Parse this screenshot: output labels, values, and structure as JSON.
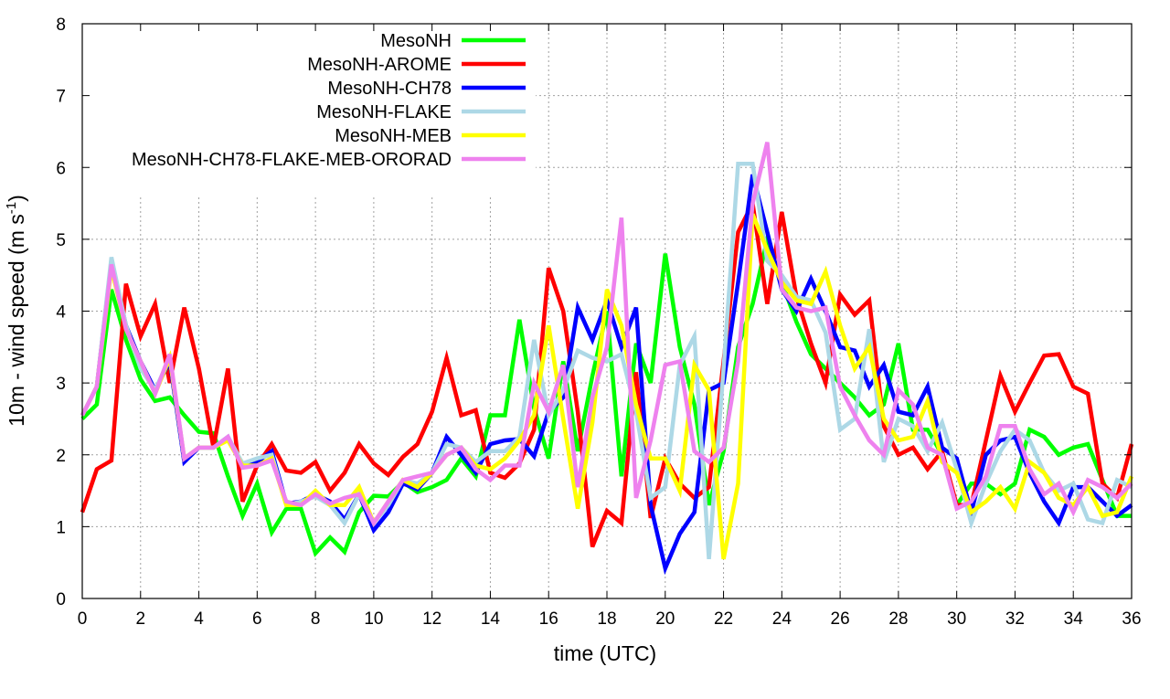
{
  "chart_data": {
    "type": "line",
    "title": "",
    "xlabel": "time (UTC)",
    "ylabel": "10m - wind speed  (m s",
    "ylabel_sup": "-1",
    "ylabel_end": ")",
    "xlim": [
      0,
      36
    ],
    "ylim": [
      0,
      8
    ],
    "x_start": 0,
    "x_step": 0.5,
    "xticks": [
      "0",
      "2",
      "4",
      "6",
      "8",
      "10",
      "12",
      "14",
      "16",
      "18",
      "20",
      "22",
      "24",
      "26",
      "28",
      "30",
      "32",
      "34",
      "36"
    ],
    "yticks": [
      "0",
      "1",
      "2",
      "3",
      "4",
      "5",
      "6",
      "7",
      "8"
    ],
    "grid": true,
    "legend_position": "top-left",
    "series": [
      {
        "name": "MesoNH",
        "color": "#00ff00",
        "values": [
          2.5,
          2.7,
          4.3,
          3.6,
          3.05,
          2.75,
          2.8,
          2.55,
          2.32,
          2.3,
          1.7,
          1.15,
          1.6,
          0.92,
          1.25,
          1.25,
          0.63,
          0.85,
          0.65,
          1.2,
          1.43,
          1.42,
          1.62,
          1.48,
          1.55,
          1.65,
          1.95,
          1.7,
          2.55,
          2.55,
          3.88,
          2.65,
          1.95,
          3.3,
          2.05,
          3.1,
          4.0,
          1.7,
          3.55,
          3.0,
          4.8,
          3.5,
          2.7,
          1.3,
          2.05,
          3.5,
          4.1,
          5.0,
          4.4,
          3.85,
          3.4,
          3.2,
          3.0,
          2.8,
          2.55,
          2.7,
          3.55,
          2.35,
          2.35,
          2.0,
          1.3,
          1.6,
          1.6,
          1.45,
          1.6,
          2.35,
          2.25,
          2.0,
          2.1,
          2.15,
          1.65,
          1.15,
          1.15
        ]
      },
      {
        "name": "MesoNH-AROME",
        "color": "#ff0000",
        "values": [
          1.2,
          1.8,
          1.92,
          4.38,
          3.65,
          4.1,
          3.0,
          4.05,
          3.2,
          2.1,
          3.2,
          1.35,
          1.85,
          2.15,
          1.78,
          1.75,
          1.9,
          1.5,
          1.75,
          2.15,
          1.88,
          1.72,
          1.97,
          2.15,
          2.6,
          3.35,
          2.55,
          2.62,
          1.75,
          1.68,
          1.88,
          2.35,
          4.6,
          4.0,
          2.6,
          0.72,
          1.22,
          1.05,
          3.15,
          1.12,
          1.95,
          1.6,
          1.4,
          1.55,
          3.3,
          5.1,
          5.5,
          4.1,
          5.38,
          4.2,
          3.55,
          3.0,
          4.23,
          3.95,
          4.15,
          2.4,
          2.0,
          2.1,
          1.8,
          2.05,
          1.3,
          1.3,
          2.2,
          3.1,
          2.6,
          3.0,
          3.38,
          3.4,
          2.95,
          2.85,
          1.6,
          1.4,
          2.15
        ]
      },
      {
        "name": "MesoNH-CH78",
        "color": "#0000ff",
        "values": [
          2.55,
          2.95,
          4.7,
          3.8,
          3.3,
          2.9,
          3.3,
          1.9,
          2.1,
          2.1,
          2.25,
          1.85,
          1.9,
          2.05,
          1.32,
          1.35,
          1.45,
          1.35,
          1.1,
          1.45,
          0.95,
          1.2,
          1.6,
          1.52,
          1.75,
          2.25,
          2.0,
          1.75,
          2.15,
          2.2,
          2.22,
          1.98,
          2.6,
          2.8,
          4.05,
          3.6,
          4.15,
          3.5,
          4.05,
          1.3,
          0.42,
          0.9,
          1.2,
          2.9,
          3.0,
          4.4,
          5.9,
          5.1,
          4.3,
          4.0,
          4.45,
          4.0,
          3.5,
          3.45,
          2.95,
          3.25,
          2.6,
          2.55,
          2.95,
          2.1,
          1.95,
          1.2,
          2.0,
          2.2,
          2.25,
          1.75,
          1.35,
          1.05,
          1.55,
          1.55,
          1.35,
          1.15,
          1.3
        ]
      },
      {
        "name": "MesoNH-FLAKE",
        "color": "#add8e6",
        "values": [
          2.55,
          2.95,
          4.75,
          3.8,
          3.2,
          2.9,
          3.35,
          1.95,
          2.1,
          2.1,
          2.25,
          1.88,
          1.95,
          2.0,
          1.3,
          1.35,
          1.42,
          1.3,
          1.05,
          1.45,
          1.05,
          1.3,
          1.65,
          1.6,
          1.75,
          2.15,
          2.1,
          1.9,
          2.05,
          2.05,
          2.25,
          3.6,
          2.55,
          2.9,
          3.45,
          3.35,
          3.3,
          3.4,
          2.6,
          1.4,
          1.55,
          3.25,
          3.65,
          0.55,
          3.2,
          6.05,
          6.05,
          4.7,
          4.5,
          4.2,
          4.15,
          3.7,
          2.35,
          2.5,
          3.75,
          1.9,
          2.5,
          2.4,
          2.05,
          2.45,
          1.8,
          1.05,
          1.6,
          2.05,
          2.35,
          2.2,
          1.75,
          1.5,
          1.6,
          1.1,
          1.05,
          1.65,
          1.55
        ]
      },
      {
        "name": "MesoNH-MEB",
        "color": "#ffff00",
        "values": [
          2.55,
          2.95,
          4.6,
          3.75,
          3.3,
          2.85,
          3.35,
          1.95,
          2.1,
          2.1,
          2.2,
          1.85,
          1.85,
          1.95,
          1.3,
          1.3,
          1.5,
          1.3,
          1.3,
          1.55,
          1.05,
          1.35,
          1.65,
          1.55,
          1.75,
          2.0,
          2.1,
          1.85,
          1.8,
          1.95,
          2.2,
          2.55,
          3.8,
          2.5,
          1.25,
          2.45,
          4.3,
          3.8,
          2.7,
          1.95,
          1.95,
          1.5,
          3.25,
          2.9,
          0.55,
          1.6,
          5.35,
          4.85,
          4.4,
          4.15,
          4.1,
          4.55,
          3.8,
          3.2,
          3.5,
          2.5,
          2.2,
          2.25,
          2.75,
          1.9,
          1.75,
          1.2,
          1.35,
          1.55,
          1.25,
          1.9,
          1.75,
          1.4,
          1.3,
          1.55,
          1.15,
          1.2,
          1.7
        ]
      },
      {
        "name": "MesoNH-CH78-FLAKE-MEB-ORORAD",
        "color": "#ee82ee",
        "values": [
          2.55,
          2.95,
          4.65,
          3.75,
          3.3,
          2.85,
          3.4,
          1.95,
          2.1,
          2.1,
          2.25,
          1.82,
          1.85,
          1.92,
          1.35,
          1.3,
          1.45,
          1.32,
          1.4,
          1.45,
          1.05,
          1.35,
          1.65,
          1.7,
          1.75,
          2.0,
          2.1,
          1.8,
          1.65,
          1.85,
          1.85,
          3.0,
          2.6,
          3.25,
          1.55,
          2.8,
          3.5,
          5.3,
          1.4,
          2.2,
          3.25,
          3.3,
          2.05,
          1.9,
          2.1,
          3.3,
          5.5,
          6.35,
          4.3,
          4.05,
          4.0,
          4.05,
          2.95,
          2.55,
          2.2,
          2.0,
          2.9,
          2.7,
          2.1,
          2.0,
          1.25,
          1.35,
          1.7,
          2.4,
          2.4,
          1.8,
          1.45,
          1.6,
          1.2,
          1.65,
          1.55,
          1.4,
          1.6
        ]
      }
    ]
  }
}
